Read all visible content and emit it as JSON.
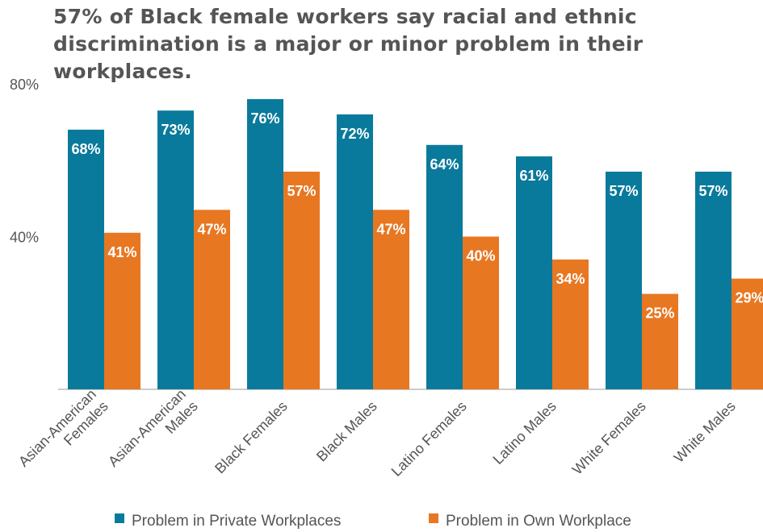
{
  "chart_data": {
    "type": "bar",
    "title": "57% of Black female workers say racial and ethnic discrimination is a major or minor problem in their workplaces.",
    "categories": [
      [
        "Asian-American",
        "Females"
      ],
      [
        "Asian-American",
        "Males"
      ],
      [
        "Black Females"
      ],
      [
        "Black Males"
      ],
      [
        "Latino Females"
      ],
      [
        "Latino Males"
      ],
      [
        "White Females"
      ],
      [
        "White Males"
      ]
    ],
    "series": [
      {
        "name": "Problem in Private Workplaces",
        "color": "#0a7a9c",
        "values": [
          68,
          73,
          76,
          72,
          64,
          61,
          57,
          57
        ]
      },
      {
        "name": "Problem in Own Workplace",
        "color": "#e87722",
        "values": [
          41,
          47,
          57,
          47,
          40,
          34,
          25,
          29
        ]
      }
    ],
    "ylim": [
      0,
      80
    ],
    "yticks": [
      40,
      80
    ],
    "value_suffix": "%",
    "legend_position": "bottom",
    "grid": false
  }
}
